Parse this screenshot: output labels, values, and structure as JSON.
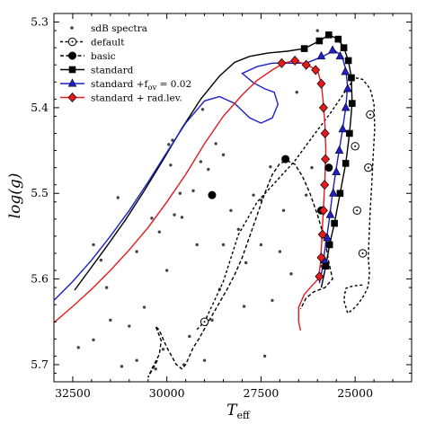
{
  "chart_data": {
    "type": "line",
    "x_label_main": "T",
    "x_label_sub": "eff",
    "y_label": "log(g)",
    "x_range": [
      33000,
      23500
    ],
    "y_range": [
      5.72,
      5.29
    ],
    "x_ticks": [
      32500,
      30000,
      27500,
      25000
    ],
    "x_tick_labels": [
      "32500",
      "30000",
      "27500",
      "25000"
    ],
    "y_ticks": [
      5.3,
      5.4,
      5.5,
      5.6,
      5.7
    ],
    "y_tick_labels": [
      "5.3",
      "5.4",
      "5.5",
      "5.6",
      "5.7"
    ],
    "legend_position": "top-left",
    "scatter_color": "#444444",
    "scatter": {
      "name": "sdB spectra",
      "points": [
        [
          32350,
          5.68
        ],
        [
          31950,
          5.671
        ],
        [
          31500,
          5.648
        ],
        [
          31200,
          5.702
        ],
        [
          30800,
          5.695
        ],
        [
          31000,
          5.655
        ],
        [
          30300,
          5.705
        ],
        [
          30100,
          5.682
        ],
        [
          31300,
          5.505
        ],
        [
          31750,
          5.578
        ],
        [
          31950,
          5.56
        ],
        [
          30400,
          5.529
        ],
        [
          30200,
          5.545
        ],
        [
          30600,
          5.633
        ],
        [
          29650,
          5.5
        ],
        [
          29900,
          5.467
        ],
        [
          29950,
          5.443
        ],
        [
          29850,
          5.438
        ],
        [
          29100,
          5.463
        ],
        [
          29050,
          5.402
        ],
        [
          28700,
          5.442
        ],
        [
          28500,
          5.455
        ],
        [
          28900,
          5.472
        ],
        [
          29300,
          5.497
        ],
        [
          29600,
          5.528
        ],
        [
          30000,
          5.59
        ],
        [
          29400,
          5.667
        ],
        [
          28600,
          5.612
        ],
        [
          28100,
          5.542
        ],
        [
          27900,
          5.581
        ],
        [
          27700,
          5.502
        ],
        [
          27500,
          5.508
        ],
        [
          28300,
          5.52
        ],
        [
          29200,
          5.56
        ],
        [
          29800,
          5.525
        ],
        [
          27250,
          5.469
        ],
        [
          27500,
          5.56
        ],
        [
          27950,
          5.632
        ],
        [
          27000,
          5.568
        ],
        [
          26700,
          5.594
        ],
        [
          26300,
          5.502
        ],
        [
          26150,
          5.47
        ],
        [
          26550,
          5.382
        ],
        [
          26000,
          5.31
        ],
        [
          27200,
          5.625
        ],
        [
          28500,
          5.56
        ],
        [
          30800,
          5.568
        ],
        [
          31600,
          5.61
        ],
        [
          29000,
          5.695
        ],
        [
          26900,
          5.52
        ],
        [
          25900,
          5.585
        ],
        [
          28800,
          5.648
        ],
        [
          27400,
          5.69
        ],
        [
          29550,
          5.7
        ]
      ]
    },
    "series": [
      {
        "name": "default",
        "color": "#000000",
        "dash": "3,2.5",
        "marker": "open-circle",
        "points": [
          [
            29200,
            5.659
          ],
          [
            29000,
            5.65
          ],
          [
            28500,
            5.603
          ],
          [
            28100,
            5.548
          ],
          [
            27600,
            5.51
          ],
          [
            27100,
            5.486
          ],
          [
            26600,
            5.462
          ],
          [
            26100,
            5.432
          ],
          [
            25650,
            5.406
          ],
          [
            25250,
            5.38
          ],
          [
            25000,
            5.365
          ],
          [
            24800,
            5.367
          ],
          [
            24600,
            5.378
          ],
          [
            24500,
            5.395
          ],
          [
            24480,
            5.425
          ],
          [
            24520,
            5.455
          ],
          [
            24560,
            5.49
          ],
          [
            24600,
            5.52
          ],
          [
            24630,
            5.55
          ],
          [
            24650,
            5.575
          ],
          [
            24620,
            5.593
          ],
          [
            24650,
            5.608
          ],
          [
            24750,
            5.618
          ],
          [
            24900,
            5.628
          ],
          [
            25050,
            5.635
          ],
          [
            25200,
            5.64
          ],
          [
            25300,
            5.625
          ],
          [
            25250,
            5.611
          ],
          [
            25050,
            5.608
          ],
          [
            24800,
            5.607
          ]
        ],
        "marker_points": [
          [
            29000,
            5.65
          ],
          [
            25000,
            5.445
          ],
          [
            24600,
            5.408
          ],
          [
            24650,
            5.47
          ],
          [
            24800,
            5.57
          ],
          [
            24950,
            5.52
          ]
        ]
      },
      {
        "name": "basic",
        "color": "#000000",
        "dash": "4,2.5",
        "marker": "filled-circle",
        "points": [
          [
            30250,
            5.695
          ],
          [
            30500,
            5.715
          ],
          [
            30400,
            5.705
          ],
          [
            30200,
            5.688
          ],
          [
            30150,
            5.672
          ],
          [
            30300,
            5.655
          ],
          [
            30200,
            5.66
          ],
          [
            30000,
            5.68
          ],
          [
            29750,
            5.7
          ],
          [
            29600,
            5.705
          ],
          [
            29500,
            5.7
          ],
          [
            29400,
            5.69
          ],
          [
            29300,
            5.68
          ],
          [
            29150,
            5.67
          ],
          [
            28900,
            5.65
          ],
          [
            28700,
            5.635
          ],
          [
            28400,
            5.612
          ],
          [
            28200,
            5.595
          ],
          [
            28000,
            5.575
          ],
          [
            27800,
            5.55
          ],
          [
            27600,
            5.525
          ],
          [
            27400,
            5.5
          ],
          [
            27200,
            5.478
          ],
          [
            27000,
            5.465
          ],
          [
            26800,
            5.462
          ],
          [
            26600,
            5.466
          ],
          [
            26400,
            5.48
          ],
          [
            26200,
            5.5
          ],
          [
            26000,
            5.525
          ],
          [
            25800,
            5.555
          ],
          [
            25700,
            5.58
          ],
          [
            25600,
            5.6
          ],
          [
            25800,
            5.61
          ],
          [
            26100,
            5.615
          ],
          [
            26300,
            5.622
          ],
          [
            26450,
            5.635
          ]
        ],
        "marker_points": [
          [
            28800,
            5.502
          ],
          [
            26850,
            5.46
          ],
          [
            25900,
            5.52
          ],
          [
            25700,
            5.47
          ]
        ]
      },
      {
        "name": "standard",
        "color": "#000000",
        "dash": "",
        "marker": "filled-square",
        "points": [
          [
            32450,
            5.613
          ],
          [
            32100,
            5.592
          ],
          [
            31600,
            5.562
          ],
          [
            31100,
            5.531
          ],
          [
            30600,
            5.497
          ],
          [
            30100,
            5.461
          ],
          [
            29600,
            5.424
          ],
          [
            29100,
            5.39
          ],
          [
            28600,
            5.363
          ],
          [
            28200,
            5.347
          ],
          [
            27800,
            5.34
          ],
          [
            27300,
            5.336
          ],
          [
            26800,
            5.334
          ],
          [
            26350,
            5.331
          ],
          [
            25950,
            5.322
          ],
          [
            25700,
            5.315
          ],
          [
            25450,
            5.32
          ],
          [
            25300,
            5.33
          ],
          [
            25180,
            5.345
          ],
          [
            25100,
            5.365
          ],
          [
            25080,
            5.395
          ],
          [
            25150,
            5.43
          ],
          [
            25250,
            5.465
          ],
          [
            25400,
            5.5
          ],
          [
            25550,
            5.535
          ],
          [
            25680,
            5.56
          ],
          [
            25780,
            5.585
          ],
          [
            25850,
            5.6
          ],
          [
            25900,
            5.61
          ]
        ],
        "marker_points": [
          [
            26350,
            5.331
          ],
          [
            25950,
            5.322
          ],
          [
            25700,
            5.315
          ],
          [
            25450,
            5.32
          ],
          [
            25300,
            5.33
          ],
          [
            25180,
            5.345
          ],
          [
            25100,
            5.365
          ],
          [
            25080,
            5.395
          ],
          [
            25150,
            5.43
          ],
          [
            25250,
            5.465
          ],
          [
            25400,
            5.5
          ],
          [
            25550,
            5.535
          ],
          [
            25680,
            5.56
          ],
          [
            25780,
            5.585
          ]
        ]
      },
      {
        "name": "standard +f_ov = 0.02",
        "color": "#1f1fc8",
        "dash": "",
        "marker": "filled-triangle",
        "points": [
          [
            33000,
            5.625
          ],
          [
            32500,
            5.603
          ],
          [
            32000,
            5.578
          ],
          [
            31500,
            5.55
          ],
          [
            31000,
            5.52
          ],
          [
            30500,
            5.487
          ],
          [
            30000,
            5.452
          ],
          [
            29500,
            5.418
          ],
          [
            29000,
            5.392
          ],
          [
            28600,
            5.387
          ],
          [
            28200,
            5.395
          ],
          [
            27800,
            5.412
          ],
          [
            27500,
            5.418
          ],
          [
            27200,
            5.412
          ],
          [
            27050,
            5.396
          ],
          [
            27150,
            5.382
          ],
          [
            27400,
            5.378
          ],
          [
            27700,
            5.371
          ],
          [
            28000,
            5.36
          ],
          [
            27600,
            5.352
          ],
          [
            27200,
            5.348
          ],
          [
            26800,
            5.348
          ],
          [
            26300,
            5.348
          ],
          [
            25850,
            5.34
          ],
          [
            25550,
            5.333
          ],
          [
            25350,
            5.34
          ],
          [
            25250,
            5.355
          ],
          [
            25200,
            5.375
          ],
          [
            25250,
            5.4
          ],
          [
            25350,
            5.43
          ],
          [
            25480,
            5.465
          ],
          [
            25600,
            5.5
          ],
          [
            25700,
            5.535
          ],
          [
            25800,
            5.565
          ],
          [
            25880,
            5.59
          ],
          [
            25950,
            5.605
          ]
        ],
        "marker_points": [
          [
            25900,
            5.34
          ],
          [
            25600,
            5.333
          ],
          [
            25400,
            5.34
          ],
          [
            25260,
            5.358
          ],
          [
            25200,
            5.378
          ],
          [
            25250,
            5.4
          ],
          [
            25330,
            5.425
          ],
          [
            25420,
            5.45
          ],
          [
            25500,
            5.475
          ],
          [
            25580,
            5.5
          ],
          [
            25660,
            5.525
          ],
          [
            25740,
            5.552
          ],
          [
            25820,
            5.578
          ]
        ]
      },
      {
        "name": "standard + rad.lev.",
        "color": "#e41a1c",
        "dash": "",
        "marker": "filled-diamond",
        "points": [
          [
            33000,
            5.651
          ],
          [
            32500,
            5.632
          ],
          [
            32000,
            5.612
          ],
          [
            31500,
            5.59
          ],
          [
            31000,
            5.566
          ],
          [
            30500,
            5.54
          ],
          [
            30000,
            5.51
          ],
          [
            29500,
            5.478
          ],
          [
            29000,
            5.442
          ],
          [
            28500,
            5.41
          ],
          [
            28000,
            5.385
          ],
          [
            27600,
            5.368
          ],
          [
            27200,
            5.356
          ],
          [
            26900,
            5.348
          ],
          [
            26600,
            5.345
          ],
          [
            26300,
            5.35
          ],
          [
            26000,
            5.356
          ],
          [
            25900,
            5.372
          ],
          [
            25850,
            5.392
          ],
          [
            25800,
            5.42
          ],
          [
            25780,
            5.45
          ],
          [
            25800,
            5.482
          ],
          [
            25840,
            5.515
          ],
          [
            25880,
            5.55
          ],
          [
            25920,
            5.582
          ],
          [
            25980,
            5.6
          ],
          [
            26150,
            5.608
          ],
          [
            26350,
            5.618
          ],
          [
            26500,
            5.633
          ],
          [
            26500,
            5.65
          ],
          [
            26450,
            5.66
          ]
        ],
        "marker_points": [
          [
            26950,
            5.348
          ],
          [
            26600,
            5.345
          ],
          [
            26300,
            5.35
          ],
          [
            26050,
            5.356
          ],
          [
            25900,
            5.372
          ],
          [
            25840,
            5.4
          ],
          [
            25800,
            5.43
          ],
          [
            25790,
            5.46
          ],
          [
            25810,
            5.49
          ],
          [
            25840,
            5.52
          ],
          [
            25870,
            5.548
          ],
          [
            25900,
            5.575
          ],
          [
            25950,
            5.597
          ]
        ]
      }
    ],
    "legend": [
      {
        "label": "sdB spectra",
        "sub": "",
        "tail": ""
      },
      {
        "label": "default",
        "sub": "",
        "tail": ""
      },
      {
        "label": "basic",
        "sub": "",
        "tail": ""
      },
      {
        "label": "standard",
        "sub": "",
        "tail": ""
      },
      {
        "label": "standard +f",
        "sub": "ov",
        "tail": " = 0.02"
      },
      {
        "label": "standard + rad.lev.",
        "sub": "",
        "tail": ""
      }
    ]
  }
}
